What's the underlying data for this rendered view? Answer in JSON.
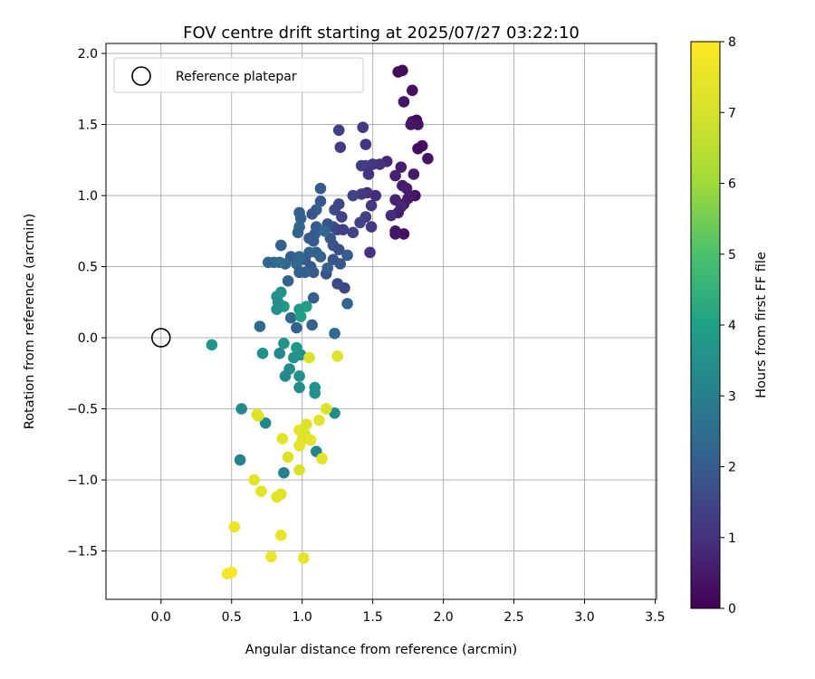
{
  "chart_data": {
    "type": "scatter",
    "title": "FOV centre drift starting at 2025/07/27 03:22:10",
    "xlabel": "Angular distance from reference (arcmin)",
    "ylabel": "Rotation from reference (arcmin)",
    "xlim": [
      -0.39,
      3.51
    ],
    "ylim": [
      -1.84,
      2.07
    ],
    "xticks": [
      "0.0",
      "0.5",
      "1.0",
      "1.5",
      "2.0",
      "2.5",
      "3.0",
      "3.5"
    ],
    "yticks": [
      "−1.5",
      "−1.0",
      "−0.5",
      "0.0",
      "0.5",
      "1.0",
      "1.5",
      "2.0"
    ],
    "xtick_values": [
      0,
      0.5,
      1.0,
      1.5,
      2.0,
      2.5,
      3.0,
      3.5
    ],
    "ytick_values": [
      -1.5,
      -1.0,
      -0.5,
      0,
      0.5,
      1.0,
      1.5,
      2.0
    ],
    "grid": true,
    "legend": {
      "position": "top-left",
      "entries": [
        {
          "label": "Reference platepar",
          "marker": "open-circle"
        }
      ]
    },
    "reference_point": {
      "x": 0.0,
      "y": 0.0
    },
    "colorbar": {
      "label": "Hours from first FF file",
      "colormap": "viridis",
      "range": [
        0,
        8
      ],
      "ticks": [
        "0",
        "1",
        "2",
        "3",
        "4",
        "5",
        "6",
        "7",
        "8"
      ],
      "tick_values": [
        0,
        1,
        2,
        3,
        4,
        5,
        6,
        7,
        8
      ]
    },
    "points": [
      {
        "x": 1.68,
        "y": 1.87,
        "c": 0.1
      },
      {
        "x": 1.71,
        "y": 1.88,
        "c": 0.2
      },
      {
        "x": 1.78,
        "y": 1.74,
        "c": 0.3
      },
      {
        "x": 1.72,
        "y": 1.66,
        "c": 0.4
      },
      {
        "x": 1.78,
        "y": 1.52,
        "c": 0.3
      },
      {
        "x": 1.81,
        "y": 1.53,
        "c": 0.2
      },
      {
        "x": 1.77,
        "y": 1.5,
        "c": 0.5
      },
      {
        "x": 1.82,
        "y": 1.5,
        "c": 0.4
      },
      {
        "x": 1.85,
        "y": 1.35,
        "c": 0.3
      },
      {
        "x": 1.82,
        "y": 1.33,
        "c": 0.2
      },
      {
        "x": 1.89,
        "y": 1.26,
        "c": 0.4
      },
      {
        "x": 1.79,
        "y": 1.15,
        "c": 0.5
      },
      {
        "x": 1.7,
        "y": 1.2,
        "c": 0.6
      },
      {
        "x": 1.66,
        "y": 1.14,
        "c": 0.7
      },
      {
        "x": 1.71,
        "y": 1.07,
        "c": 0.5
      },
      {
        "x": 1.74,
        "y": 1.05,
        "c": 0.6
      },
      {
        "x": 1.8,
        "y": 1.0,
        "c": 0.4
      },
      {
        "x": 1.75,
        "y": 0.98,
        "c": 0.5
      },
      {
        "x": 1.72,
        "y": 0.94,
        "c": 0.6
      },
      {
        "x": 1.66,
        "y": 0.97,
        "c": 0.7
      },
      {
        "x": 1.7,
        "y": 0.92,
        "c": 0.8
      },
      {
        "x": 1.68,
        "y": 0.88,
        "c": 0.6
      },
      {
        "x": 1.63,
        "y": 0.86,
        "c": 0.9
      },
      {
        "x": 1.66,
        "y": 0.75,
        "c": 0.5
      },
      {
        "x": 1.72,
        "y": 0.73,
        "c": 0.3
      },
      {
        "x": 1.66,
        "y": 0.73,
        "c": 0.4
      },
      {
        "x": 1.6,
        "y": 1.24,
        "c": 0.8
      },
      {
        "x": 1.55,
        "y": 1.22,
        "c": 1.0
      },
      {
        "x": 1.5,
        "y": 1.22,
        "c": 1.1
      },
      {
        "x": 1.45,
        "y": 1.21,
        "c": 1.2
      },
      {
        "x": 1.42,
        "y": 1.21,
        "c": 1.3
      },
      {
        "x": 1.45,
        "y": 1.36,
        "c": 1.1
      },
      {
        "x": 1.43,
        "y": 1.48,
        "c": 1.2
      },
      {
        "x": 1.47,
        "y": 1.15,
        "c": 1.0
      },
      {
        "x": 1.52,
        "y": 1.0,
        "c": 0.9
      },
      {
        "x": 1.46,
        "y": 1.02,
        "c": 1.0
      },
      {
        "x": 1.42,
        "y": 1.01,
        "c": 1.2
      },
      {
        "x": 1.49,
        "y": 0.93,
        "c": 1.1
      },
      {
        "x": 1.45,
        "y": 0.85,
        "c": 1.3
      },
      {
        "x": 1.41,
        "y": 0.81,
        "c": 1.4
      },
      {
        "x": 1.49,
        "y": 0.78,
        "c": 1.2
      },
      {
        "x": 1.48,
        "y": 0.6,
        "c": 1.0
      },
      {
        "x": 1.36,
        "y": 1.0,
        "c": 1.4
      },
      {
        "x": 1.26,
        "y": 1.46,
        "c": 1.3
      },
      {
        "x": 1.27,
        "y": 1.34,
        "c": 1.2
      },
      {
        "x": 1.26,
        "y": 0.94,
        "c": 1.5
      },
      {
        "x": 1.23,
        "y": 0.9,
        "c": 1.6
      },
      {
        "x": 1.28,
        "y": 0.85,
        "c": 1.4
      },
      {
        "x": 1.22,
        "y": 0.78,
        "c": 1.7
      },
      {
        "x": 1.25,
        "y": 0.76,
        "c": 1.5
      },
      {
        "x": 1.29,
        "y": 0.76,
        "c": 1.3
      },
      {
        "x": 1.36,
        "y": 0.74,
        "c": 1.4
      },
      {
        "x": 1.18,
        "y": 0.8,
        "c": 1.8
      },
      {
        "x": 1.2,
        "y": 0.7,
        "c": 1.9
      },
      {
        "x": 1.22,
        "y": 0.65,
        "c": 1.8
      },
      {
        "x": 1.26,
        "y": 0.62,
        "c": 1.7
      },
      {
        "x": 1.22,
        "y": 0.55,
        "c": 1.8
      },
      {
        "x": 1.32,
        "y": 0.58,
        "c": 2.0
      },
      {
        "x": 1.27,
        "y": 0.52,
        "c": 1.9
      },
      {
        "x": 1.17,
        "y": 0.45,
        "c": 1.7
      },
      {
        "x": 1.25,
        "y": 0.38,
        "c": 1.6
      },
      {
        "x": 1.3,
        "y": 0.35,
        "c": 1.5
      },
      {
        "x": 1.13,
        "y": 1.05,
        "c": 2.0
      },
      {
        "x": 1.13,
        "y": 0.96,
        "c": 1.9
      },
      {
        "x": 1.1,
        "y": 0.9,
        "c": 2.1
      },
      {
        "x": 1.07,
        "y": 0.87,
        "c": 1.8
      },
      {
        "x": 1.1,
        "y": 0.78,
        "c": 2.0
      },
      {
        "x": 1.09,
        "y": 0.73,
        "c": 2.1
      },
      {
        "x": 1.05,
        "y": 0.7,
        "c": 1.9
      },
      {
        "x": 1.08,
        "y": 0.68,
        "c": 2.0
      },
      {
        "x": 1.1,
        "y": 0.6,
        "c": 2.1
      },
      {
        "x": 1.05,
        "y": 0.6,
        "c": 2.2
      },
      {
        "x": 1.02,
        "y": 0.55,
        "c": 2.0
      },
      {
        "x": 1.06,
        "y": 0.5,
        "c": 1.9
      },
      {
        "x": 1.08,
        "y": 0.46,
        "c": 2.0
      },
      {
        "x": 1.02,
        "y": 0.46,
        "c": 2.1
      },
      {
        "x": 0.98,
        "y": 0.88,
        "c": 2.1
      },
      {
        "x": 0.99,
        "y": 0.84,
        "c": 2.2
      },
      {
        "x": 0.98,
        "y": 0.78,
        "c": 2.3
      },
      {
        "x": 0.97,
        "y": 0.74,
        "c": 2.2
      },
      {
        "x": 0.98,
        "y": 0.57,
        "c": 2.3
      },
      {
        "x": 0.96,
        "y": 0.52,
        "c": 2.4
      },
      {
        "x": 0.92,
        "y": 0.57,
        "c": 2.1
      },
      {
        "x": 0.88,
        "y": 0.52,
        "c": 2.3
      },
      {
        "x": 0.84,
        "y": 0.53,
        "c": 2.5
      },
      {
        "x": 0.8,
        "y": 0.53,
        "c": 2.4
      },
      {
        "x": 0.76,
        "y": 0.53,
        "c": 2.3
      },
      {
        "x": 0.85,
        "y": 0.65,
        "c": 2.2
      },
      {
        "x": 0.9,
        "y": 0.4,
        "c": 2.2
      },
      {
        "x": 0.98,
        "y": 0.46,
        "c": 2.1
      },
      {
        "x": 1.18,
        "y": 0.49,
        "c": 2.1
      },
      {
        "x": 1.16,
        "y": 0.75,
        "c": 2.3
      },
      {
        "x": 1.32,
        "y": 0.24,
        "c": 2.3
      },
      {
        "x": 1.13,
        "y": 0.57,
        "c": 2.2
      },
      {
        "x": 1.08,
        "y": 0.28,
        "c": 2.1
      },
      {
        "x": 0.92,
        "y": 0.14,
        "c": 2.3
      },
      {
        "x": 0.96,
        "y": 0.07,
        "c": 2.2
      },
      {
        "x": 1.07,
        "y": 0.09,
        "c": 2.2
      },
      {
        "x": 0.7,
        "y": 0.08,
        "c": 2.4
      },
      {
        "x": 1.23,
        "y": 0.03,
        "c": 2.4
      },
      {
        "x": 0.82,
        "y": 0.29,
        "c": 3.5
      },
      {
        "x": 0.85,
        "y": 0.32,
        "c": 3.6
      },
      {
        "x": 0.83,
        "y": 0.25,
        "c": 3.4
      },
      {
        "x": 0.87,
        "y": 0.22,
        "c": 3.7
      },
      {
        "x": 0.82,
        "y": 0.2,
        "c": 3.5
      },
      {
        "x": 0.98,
        "y": 0.2,
        "c": 3.8
      },
      {
        "x": 1.03,
        "y": 0.22,
        "c": 3.9
      },
      {
        "x": 0.99,
        "y": 0.15,
        "c": 4.0
      },
      {
        "x": 0.36,
        "y": -0.05,
        "c": 3.7
      },
      {
        "x": 0.72,
        "y": -0.11,
        "c": 3.5
      },
      {
        "x": 0.84,
        "y": -0.11,
        "c": 3.2
      },
      {
        "x": 0.87,
        "y": -0.04,
        "c": 3.6
      },
      {
        "x": 0.96,
        "y": -0.07,
        "c": 3.7
      },
      {
        "x": 0.94,
        "y": -0.14,
        "c": 3.5
      },
      {
        "x": 0.99,
        "y": -0.12,
        "c": 3.6
      },
      {
        "x": 0.91,
        "y": -0.22,
        "c": 3.4
      },
      {
        "x": 0.88,
        "y": -0.27,
        "c": 3.3
      },
      {
        "x": 0.98,
        "y": -0.27,
        "c": 3.5
      },
      {
        "x": 0.98,
        "y": -0.35,
        "c": 3.4
      },
      {
        "x": 1.09,
        "y": -0.35,
        "c": 3.6
      },
      {
        "x": 1.09,
        "y": -0.39,
        "c": 3.5
      },
      {
        "x": 1.23,
        "y": -0.53,
        "c": 3.4
      },
      {
        "x": 0.57,
        "y": -0.5,
        "c": 3.3
      },
      {
        "x": 0.74,
        "y": -0.6,
        "c": 3.2
      },
      {
        "x": 0.56,
        "y": -0.86,
        "c": 3.1
      },
      {
        "x": 1.1,
        "y": -0.8,
        "c": 3.2
      },
      {
        "x": 0.87,
        "y": -0.95,
        "c": 3.0
      },
      {
        "x": 1.05,
        "y": -0.14,
        "c": 7.1
      },
      {
        "x": 1.25,
        "y": -0.13,
        "c": 7.2
      },
      {
        "x": 1.17,
        "y": -0.5,
        "c": 7.1
      },
      {
        "x": 0.69,
        "y": -0.55,
        "c": 7.0
      },
      {
        "x": 0.68,
        "y": -0.54,
        "c": 7.2
      },
      {
        "x": 1.12,
        "y": -0.58,
        "c": 7.3
      },
      {
        "x": 0.98,
        "y": -0.65,
        "c": 7.4
      },
      {
        "x": 1.03,
        "y": -0.61,
        "c": 7.2
      },
      {
        "x": 1.02,
        "y": -0.68,
        "c": 7.1
      },
      {
        "x": 0.86,
        "y": -0.71,
        "c": 7.3
      },
      {
        "x": 1.0,
        "y": -0.72,
        "c": 7.2
      },
      {
        "x": 1.06,
        "y": -0.72,
        "c": 7.3
      },
      {
        "x": 0.98,
        "y": -0.76,
        "c": 7.4
      },
      {
        "x": 0.9,
        "y": -0.84,
        "c": 7.2
      },
      {
        "x": 1.14,
        "y": -0.85,
        "c": 7.3
      },
      {
        "x": 0.98,
        "y": -0.93,
        "c": 7.1
      },
      {
        "x": 0.66,
        "y": -1.0,
        "c": 7.3
      },
      {
        "x": 0.71,
        "y": -1.08,
        "c": 7.4
      },
      {
        "x": 0.85,
        "y": -1.1,
        "c": 7.2
      },
      {
        "x": 0.82,
        "y": -1.12,
        "c": 7.3
      },
      {
        "x": 0.52,
        "y": -1.33,
        "c": 7.6
      },
      {
        "x": 0.85,
        "y": -1.39,
        "c": 7.5
      },
      {
        "x": 0.78,
        "y": -1.54,
        "c": 7.5
      },
      {
        "x": 1.01,
        "y": -1.55,
        "c": 7.4
      },
      {
        "x": 0.47,
        "y": -1.66,
        "c": 7.7
      },
      {
        "x": 0.5,
        "y": -1.65,
        "c": 7.8
      }
    ]
  }
}
